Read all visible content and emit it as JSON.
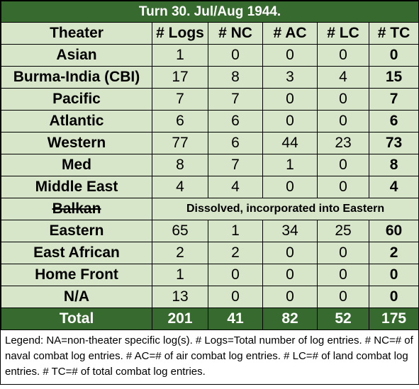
{
  "title": "Turn 30.  Jul/Aug 1944.",
  "headers": [
    "Theater",
    "# Logs",
    "# NC",
    "# AC",
    "# LC",
    "# TC"
  ],
  "rows": [
    {
      "theater": "Asian",
      "logs": "1",
      "nc": "0",
      "ac": "0",
      "lc": "0",
      "tc": "0"
    },
    {
      "theater": "Burma-India (CBI)",
      "logs": "17",
      "nc": "8",
      "ac": "3",
      "lc": "4",
      "tc": "15"
    },
    {
      "theater": "Pacific",
      "logs": "7",
      "nc": "7",
      "ac": "0",
      "lc": "0",
      "tc": "7"
    },
    {
      "theater": "Atlantic",
      "logs": "6",
      "nc": "6",
      "ac": "0",
      "lc": "0",
      "tc": "6"
    },
    {
      "theater": "Western",
      "logs": "77",
      "nc": "6",
      "ac": "44",
      "lc": "23",
      "tc": "73"
    },
    {
      "theater": "Med",
      "logs": "8",
      "nc": "7",
      "ac": "1",
      "lc": "0",
      "tc": "8"
    },
    {
      "theater": "Middle East",
      "logs": "4",
      "nc": "4",
      "ac": "0",
      "lc": "0",
      "tc": "4"
    },
    {
      "theater": "Balkan",
      "note": "Dissolved, incorporated into Eastern"
    },
    {
      "theater": "Eastern",
      "logs": "65",
      "nc": "1",
      "ac": "34",
      "lc": "25",
      "tc": "60"
    },
    {
      "theater": "East African",
      "logs": "2",
      "nc": "2",
      "ac": "0",
      "lc": "0",
      "tc": "2"
    },
    {
      "theater": "Home Front",
      "logs": "1",
      "nc": "0",
      "ac": "0",
      "lc": "0",
      "tc": "0"
    },
    {
      "theater": "N/A",
      "logs": "13",
      "nc": "0",
      "ac": "0",
      "lc": "0",
      "tc": "0"
    }
  ],
  "total": {
    "label": "Total",
    "logs": "201",
    "nc": "41",
    "ac": "82",
    "lc": "52",
    "tc": "175"
  },
  "legend": "Legend:  NA=non-theater specific log(s).  # Logs=Total number of log entries.  # NC=# of naval combat log entries.  # AC=# of air combat log entries.  # LC=# of land combat log entries.  # TC=# of total combat log entries.",
  "colors": {
    "header_green": "#376a2e",
    "cell_green": "#d7e6c8"
  }
}
